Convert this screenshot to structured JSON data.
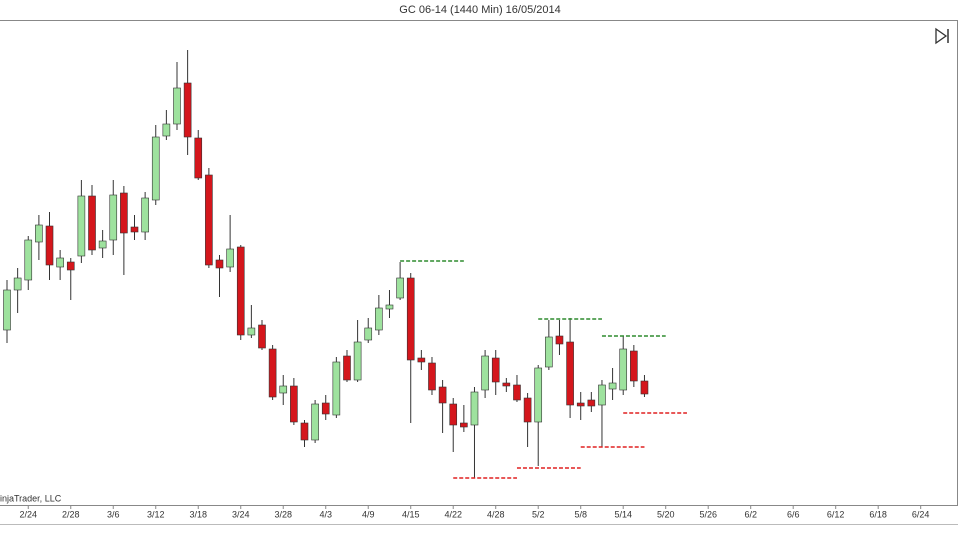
{
  "chart_data": {
    "type": "candlestick",
    "title": "GC 06-14 (1440 Min)  16/05/2014",
    "watermark": "injaTrader, LLC",
    "up_color": "#9ee29e",
    "down_color": "#d4161c",
    "open": [
      1301,
      1313,
      1316,
      1327.4,
      1332.2,
      1319.9,
      1321.4,
      1323.2,
      1341.2,
      1325.6,
      1328,
      1342.1,
      1331.9,
      1330.4,
      1340,
      1359.2,
      1362.8,
      1375.1,
      1358.6,
      1347.5,
      1322,
      1319.9,
      1325.9,
      1299.5,
      1302.5,
      1295.3,
      1282.1,
      1284.2,
      1273.1,
      1268,
      1279.1,
      1275.5,
      1293.2,
      1286,
      1298,
      1301,
      1307.3,
      1310.6,
      1316.6,
      1292.6,
      1291.1,
      1283.9,
      1278.8,
      1273.1,
      1272.5,
      1283,
      1292.6,
      1285.1,
      1284.5,
      1280.6,
      1273.4,
      1289.9,
      1299.2,
      1297.4,
      1279.1,
      1280,
      1278.5,
      1283.3,
      1283,
      1294.7,
      1285.7
    ],
    "high": [
      1316,
      1319.6,
      1329.2,
      1335.5,
      1336.4,
      1325,
      1322.6,
      1346,
      1344.5,
      1331,
      1346,
      1344.2,
      1335.5,
      1342.4,
      1362.5,
      1367,
      1381.4,
      1385,
      1361,
      1349.6,
      1323.5,
      1335.5,
      1326.5,
      1308.5,
      1304,
      1296.5,
      1287.5,
      1286.6,
      1274,
      1280,
      1281.5,
      1292.9,
      1295,
      1304,
      1304.6,
      1311.5,
      1313,
      1321.4,
      1318.1,
      1295,
      1292.9,
      1286,
      1280.6,
      1278.5,
      1283.9,
      1295,
      1295,
      1286.6,
      1287.5,
      1282.1,
      1290.5,
      1304,
      1304,
      1304.6,
      1282.4,
      1282.4,
      1286,
      1289.6,
      1299.2,
      1296.5,
      1287.5
    ],
    "low": [
      1297.1,
      1306.1,
      1313,
      1322,
      1316,
      1316,
      1310,
      1321.1,
      1323.5,
      1322.6,
      1323.5,
      1317.5,
      1328,
      1328,
      1338.5,
      1358,
      1361,
      1353.5,
      1346,
      1319.6,
      1310.9,
      1318.4,
      1298,
      1298.6,
      1295,
      1280,
      1278.5,
      1272.5,
      1265.9,
      1267.1,
      1274,
      1274.6,
      1285.4,
      1285.4,
      1297.1,
      1299.5,
      1304.6,
      1310,
      1273.1,
      1289,
      1281.5,
      1270.1,
      1264.4,
      1270.4,
      1256.6,
      1280.6,
      1281.5,
      1282.4,
      1279.4,
      1265.9,
      1260.2,
      1289,
      1293.5,
      1274.6,
      1274,
      1276.4,
      1265.9,
      1280,
      1281.5,
      1283.9,
      1280.9
    ],
    "close": [
      1313,
      1316.6,
      1328,
      1332.5,
      1320.5,
      1322.6,
      1319,
      1341.2,
      1325,
      1327.7,
      1341.5,
      1330.1,
      1330.4,
      1340.6,
      1358.9,
      1362.8,
      1373.6,
      1358.9,
      1346.6,
      1320.5,
      1319.6,
      1325.3,
      1299.5,
      1301.6,
      1295.6,
      1280.9,
      1284.2,
      1273.4,
      1268,
      1278.8,
      1275.8,
      1291.4,
      1286,
      1297.4,
      1301.6,
      1307.6,
      1308.5,
      1316.6,
      1292,
      1291.4,
      1283,
      1279.1,
      1272.5,
      1271.9,
      1282.4,
      1293.2,
      1285.4,
      1284.2,
      1280,
      1273.4,
      1289.6,
      1298.9,
      1296.8,
      1278.5,
      1278.2,
      1278.2,
      1284.5,
      1285.1,
      1295.3,
      1285.7,
      1281.8
    ],
    "levels": [
      {
        "value": 1321.7,
        "color": "#2e8b2e",
        "start": 37,
        "end": 43
      },
      {
        "value": 1256.6,
        "color": "#e02020",
        "start": 42,
        "end": 48
      },
      {
        "value": 1304.3,
        "color": "#2e8b2e",
        "start": 50,
        "end": 56
      },
      {
        "value": 1259.6,
        "color": "#e02020",
        "start": 48,
        "end": 54
      },
      {
        "value": 1265.9,
        "color": "#e02020",
        "start": 54,
        "end": 60
      },
      {
        "value": 1299.2,
        "color": "#2e8b2e",
        "start": 56,
        "end": 62
      },
      {
        "value": 1276.1,
        "color": "#e02020",
        "start": 58,
        "end": 64
      }
    ],
    "ylim": [
      1250,
      1394
    ],
    "xlim": [
      -0.66,
      89.7
    ],
    "xticks": [
      {
        "value": 2,
        "label": "2/24"
      },
      {
        "value": 6,
        "label": "2/28"
      },
      {
        "value": 10,
        "label": "3/6"
      },
      {
        "value": 14,
        "label": "3/12"
      },
      {
        "value": 18,
        "label": "3/18"
      },
      {
        "value": 22,
        "label": "3/24"
      },
      {
        "value": 26,
        "label": "3/28"
      },
      {
        "value": 30,
        "label": "4/3"
      },
      {
        "value": 34,
        "label": "4/9"
      },
      {
        "value": 38,
        "label": "4/15"
      },
      {
        "value": 42,
        "label": "4/22"
      },
      {
        "value": 46,
        "label": "4/28"
      },
      {
        "value": 50,
        "label": "5/2"
      },
      {
        "value": 54,
        "label": "5/8"
      },
      {
        "value": 58,
        "label": "5/14"
      },
      {
        "value": 62,
        "label": "5/20"
      },
      {
        "value": 66,
        "label": "5/26"
      },
      {
        "value": 70,
        "label": "6/2"
      },
      {
        "value": 74,
        "label": "6/6"
      },
      {
        "value": 78,
        "label": "6/12"
      },
      {
        "value": 82,
        "label": "6/18"
      },
      {
        "value": 86,
        "label": "6/24"
      }
    ]
  }
}
